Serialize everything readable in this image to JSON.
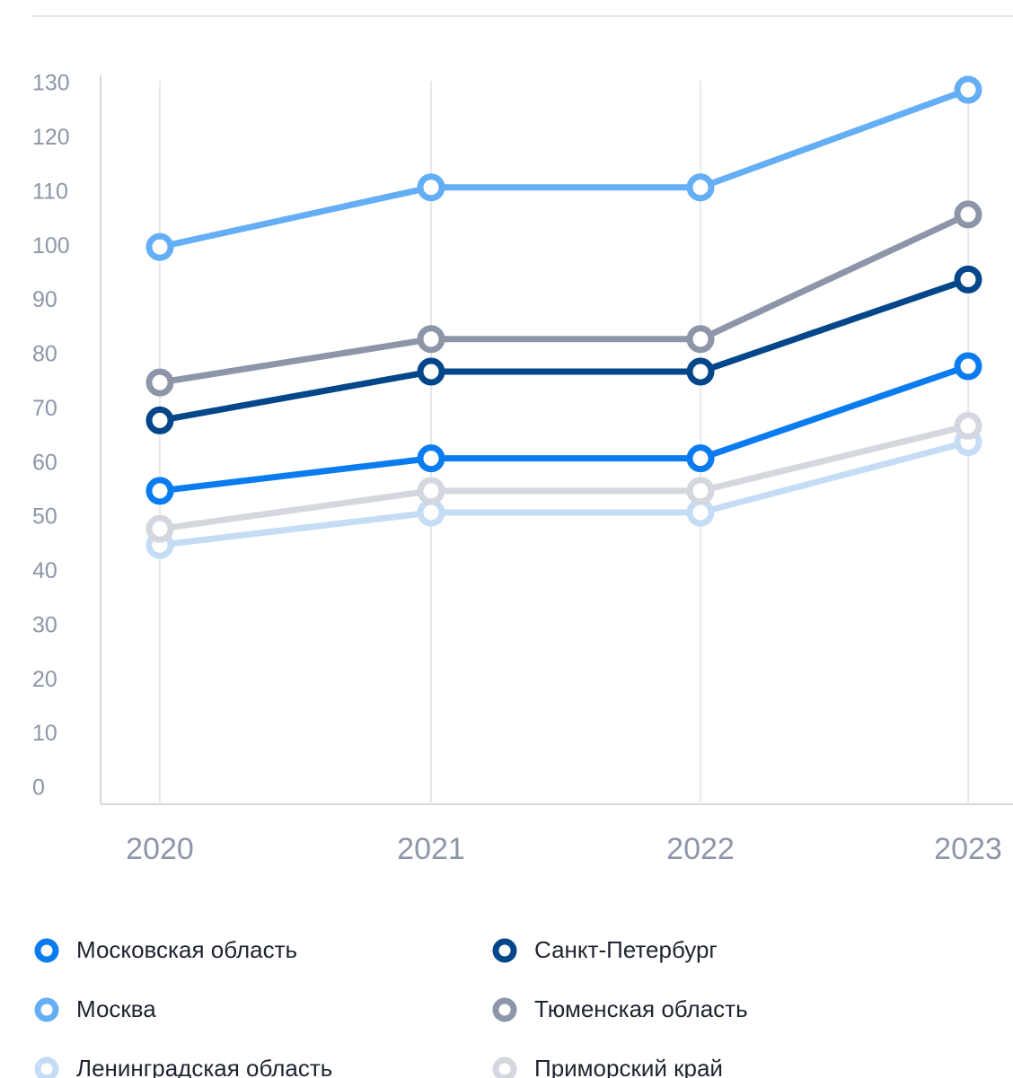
{
  "chart_data": {
    "type": "line",
    "categories": [
      "2020",
      "2021",
      "2022",
      "2023"
    ],
    "ylim": [
      0,
      130
    ],
    "yticks": [
      0,
      10,
      20,
      30,
      40,
      50,
      60,
      70,
      80,
      90,
      100,
      110,
      120,
      130
    ],
    "grid": true,
    "series": [
      {
        "name": "Московская область",
        "color": "#0a7cf0",
        "values": [
          55,
          61,
          61,
          78
        ]
      },
      {
        "name": "Санкт-Петербург",
        "color": "#03478a",
        "values": [
          68,
          77,
          77,
          94
        ]
      },
      {
        "name": "Москва",
        "color": "#64aef5",
        "values": [
          100,
          111,
          111,
          129
        ]
      },
      {
        "name": "Тюменская область",
        "color": "#8d96a8",
        "values": [
          75,
          83,
          83,
          106
        ]
      },
      {
        "name": "Ленинградская область",
        "color": "#c5dcf5",
        "values": [
          45,
          51,
          51,
          64
        ]
      },
      {
        "name": "Приморский край",
        "color": "#d5d7de",
        "values": [
          48,
          55,
          55,
          67
        ]
      }
    ]
  }
}
